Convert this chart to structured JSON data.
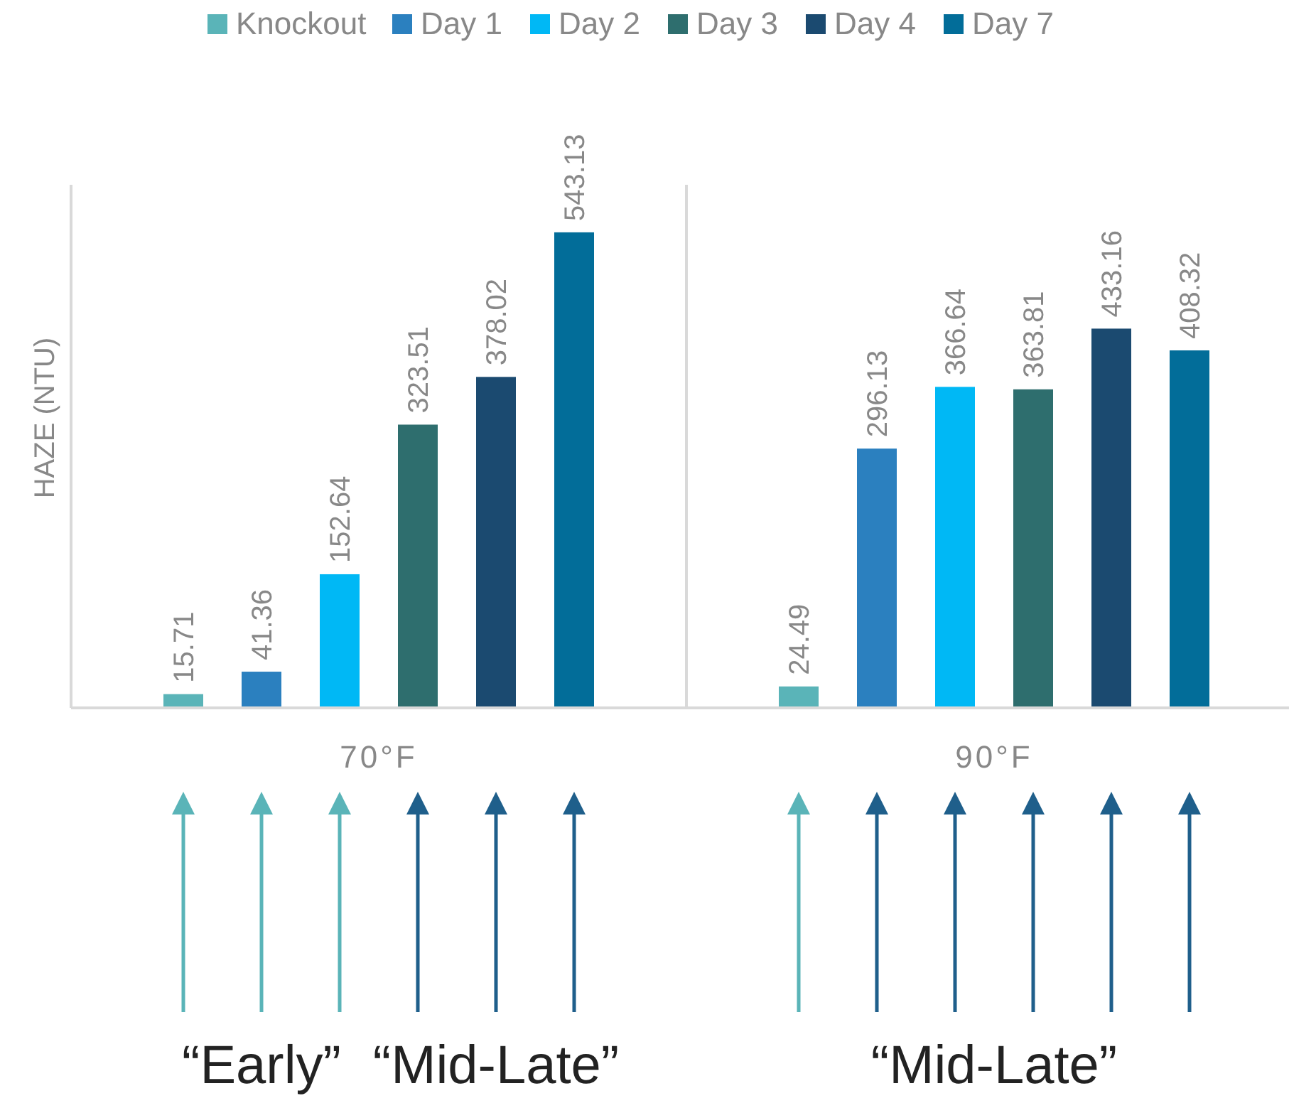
{
  "chart_data": {
    "type": "bar",
    "ylabel": "HAZE (NTU)",
    "categories": [
      "70°F",
      "90°F"
    ],
    "series": [
      {
        "name": "Knockout",
        "color": "#5ab4b8",
        "values": [
          15.71,
          24.49
        ]
      },
      {
        "name": "Day 1",
        "color": "#2b80bf",
        "values": [
          41.36,
          296.13
        ]
      },
      {
        "name": "Day 2",
        "color": "#00b8f5",
        "values": [
          152.64,
          366.64
        ]
      },
      {
        "name": "Day 3",
        "color": "#2e6e6e",
        "values": [
          323.51,
          363.81
        ]
      },
      {
        "name": "Day 4",
        "color": "#1b4a70",
        "values": [
          378.02,
          433.16
        ]
      },
      {
        "name": "Day 7",
        "color": "#026d99",
        "values": [
          543.13,
          408.32
        ]
      }
    ],
    "data_labels": true,
    "legend": "top",
    "annotations": [
      "“Early”",
      "“Mid-Late”",
      "“Mid-Late”"
    ]
  }
}
